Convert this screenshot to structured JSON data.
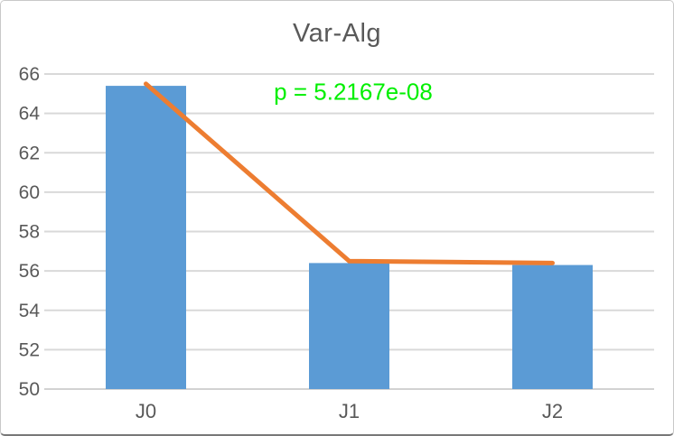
{
  "window": {
    "background": "#ffffff",
    "border_color": "#c9c9c9",
    "bottom_edge_color": "#787878"
  },
  "chart_data": {
    "type": "bar",
    "title": "Var-Alg",
    "title_color": "#595959",
    "annotation": {
      "text": "p = 5.2167e-08",
      "color": "#00ef00"
    },
    "categories": [
      "J0",
      "J1",
      "J2"
    ],
    "series": [
      {
        "name": "bars",
        "type": "bar",
        "values": [
          65.4,
          56.4,
          56.3
        ],
        "color": "#5b9bd5"
      },
      {
        "name": "trend-line",
        "type": "line",
        "values": [
          65.5,
          56.5,
          56.4
        ],
        "color": "#ed7d31"
      }
    ],
    "ylim": [
      50,
      66
    ],
    "ytick_step": 2,
    "ytick_labels": [
      "66",
      "64",
      "62",
      "60",
      "58",
      "56",
      "54",
      "52",
      "50"
    ],
    "grid": true,
    "gridline_color": "#d9d9d9",
    "baseline_color": "#d2d2d2",
    "text_color": "#595959",
    "legend": "none",
    "xlabel": "",
    "ylabel": ""
  }
}
